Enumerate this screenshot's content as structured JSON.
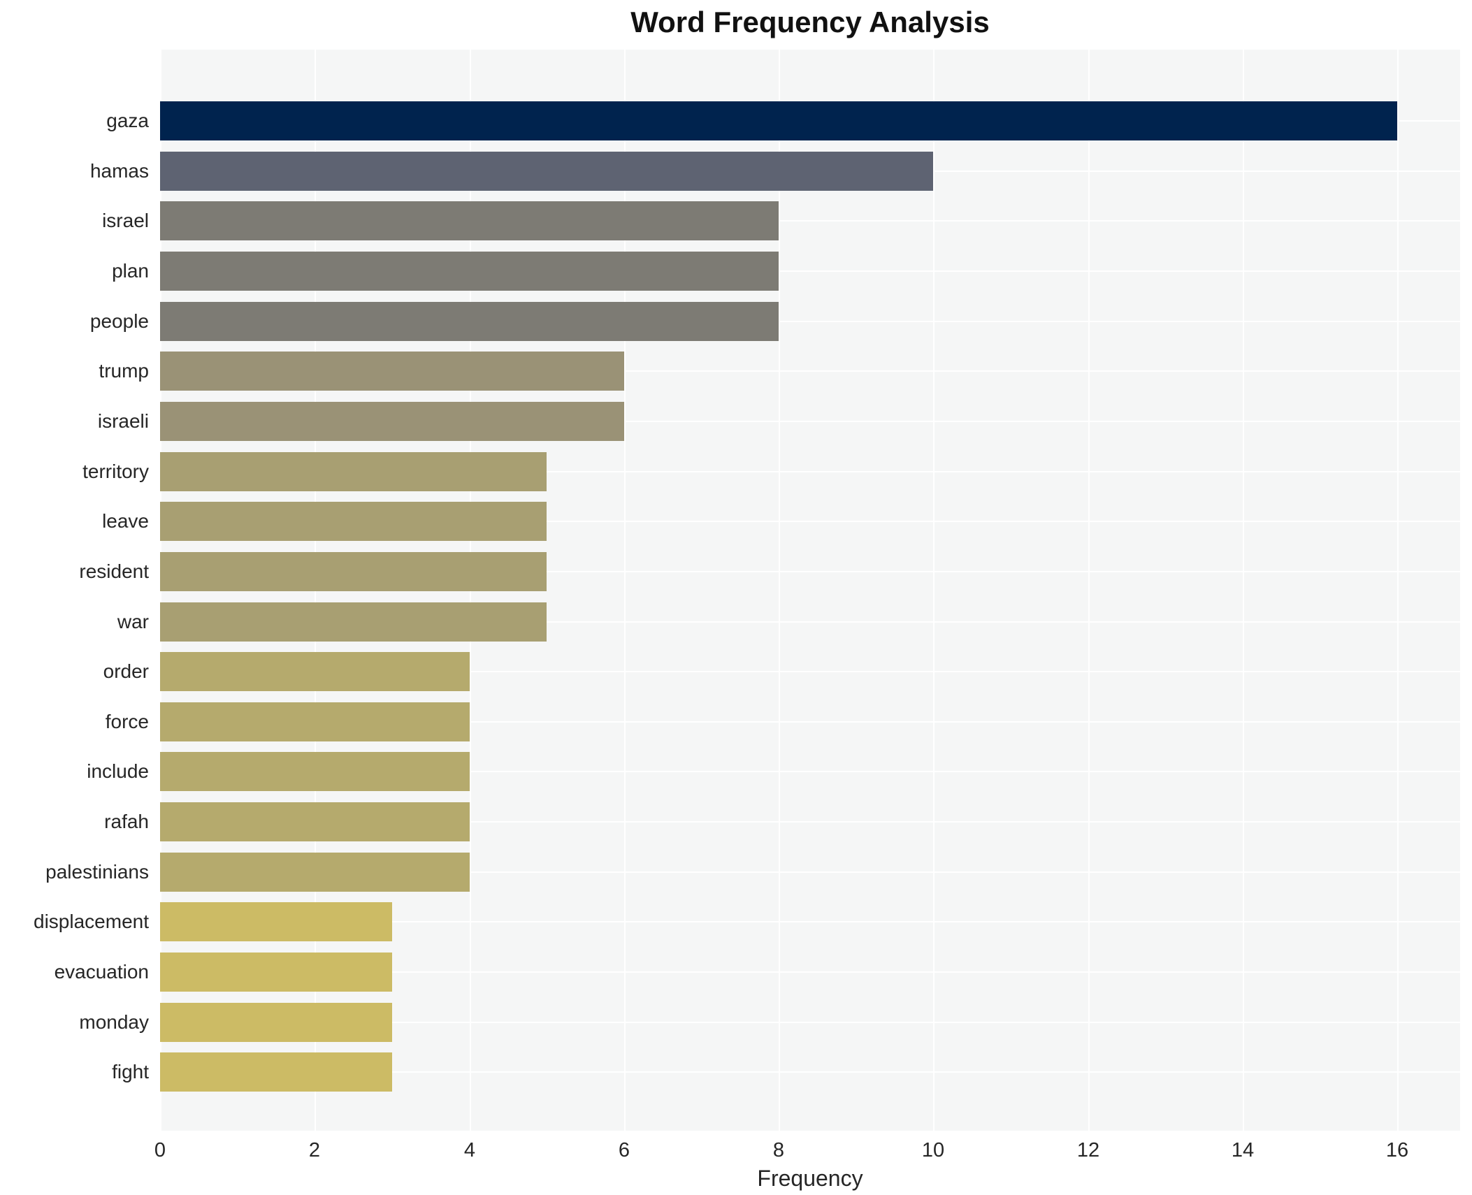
{
  "title": "Word Frequency Analysis",
  "chart_data": {
    "type": "bar",
    "orientation": "horizontal",
    "title": "Word Frequency Analysis",
    "xlabel": "Frequency",
    "ylabel": "",
    "categories": [
      "gaza",
      "hamas",
      "israel",
      "plan",
      "people",
      "trump",
      "israeli",
      "territory",
      "leave",
      "resident",
      "war",
      "order",
      "force",
      "include",
      "rafah",
      "palestinians",
      "displacement",
      "evacuation",
      "monday",
      "fight"
    ],
    "values": [
      16,
      10,
      8,
      8,
      8,
      6,
      6,
      5,
      5,
      5,
      5,
      4,
      4,
      4,
      4,
      4,
      3,
      3,
      3,
      3
    ],
    "bar_colors": [
      "#00234e",
      "#5e6372",
      "#7d7b74",
      "#7d7b74",
      "#7d7b74",
      "#9a9276",
      "#9a9276",
      "#a89f72",
      "#a89f72",
      "#a89f72",
      "#a89f72",
      "#b5aa6d",
      "#b5aa6d",
      "#b5aa6d",
      "#b5aa6d",
      "#b5aa6d",
      "#ccbb65",
      "#ccbb65",
      "#ccbb65",
      "#ccbb65"
    ],
    "xticks": [
      0,
      2,
      4,
      6,
      8,
      10,
      12,
      14,
      16
    ],
    "xlim": [
      0,
      16.8
    ],
    "grid": true,
    "legend": "none",
    "plot_bg_color": "#f5f6f6",
    "grid_color": "#ffffff"
  }
}
